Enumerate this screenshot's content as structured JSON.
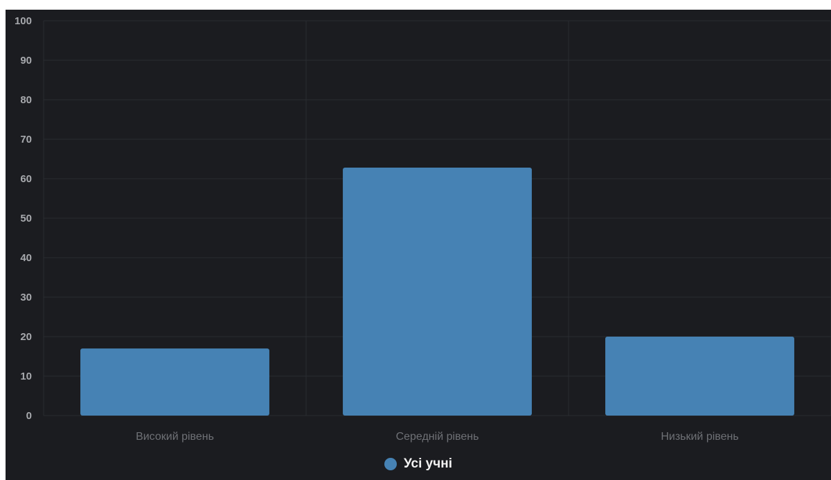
{
  "chart_data": {
    "type": "bar",
    "categories": [
      "Високий рівень",
      "Середній рівень",
      "Низький рівень"
    ],
    "series": [
      {
        "name": "Усі учні",
        "values": [
          17,
          62.8,
          20
        ],
        "color": "#4682b4"
      }
    ],
    "ylim": [
      0,
      100
    ],
    "yticks": [
      0,
      10,
      20,
      30,
      40,
      50,
      60,
      70,
      80,
      90,
      100
    ],
    "title": "",
    "xlabel": "",
    "ylabel": "",
    "grid": true,
    "legend_position": "bottom-center"
  },
  "colors": {
    "background": "#1b1c20",
    "grid": "#2a2c31",
    "bar": "#4682b4"
  },
  "legend": {
    "label": "Усі учні",
    "marker_icon": "circle-icon"
  }
}
